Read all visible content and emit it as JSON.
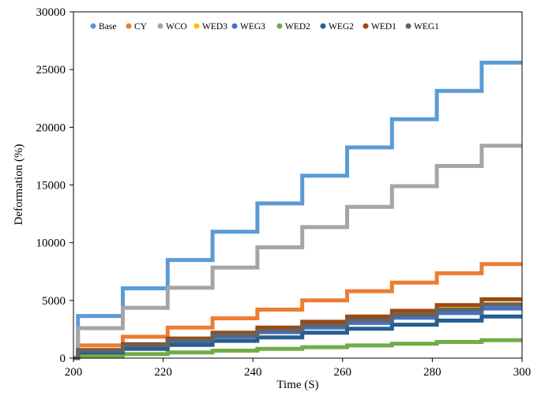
{
  "chart_data": {
    "type": "line",
    "title": "",
    "xlabel": "Time (S)",
    "ylabel": "Deformation (%)",
    "xlim": [
      200,
      300
    ],
    "ylim": [
      0,
      30000
    ],
    "x_ticks": [
      "200",
      "220",
      "240",
      "260",
      "280",
      "300"
    ],
    "y_ticks": [
      "0",
      "5000",
      "10000",
      "15000",
      "20000",
      "25000",
      "30000"
    ],
    "grid": false,
    "legend_position": "top",
    "step_start_times": [
      200,
      201,
      211,
      221,
      231,
      241,
      251,
      261,
      271,
      281,
      291
    ],
    "x_end": 300,
    "series": [
      {
        "name": "Base",
        "color": "#5B9BD5",
        "values": [
          0,
          3650,
          6050,
          8500,
          10950,
          13400,
          15800,
          18250,
          20700,
          23150,
          25600
        ]
      },
      {
        "name": "CY",
        "color": "#ED7D31",
        "values": [
          0,
          1100,
          1850,
          2650,
          3450,
          4200,
          5000,
          5800,
          6550,
          7350,
          8150
        ]
      },
      {
        "name": "WCO",
        "color": "#A5A5A5",
        "values": [
          0,
          2600,
          4350,
          6100,
          7850,
          9600,
          11350,
          13100,
          14900,
          16650,
          18400
        ]
      },
      {
        "name": "WED3",
        "color": "#FFC000",
        "values": [
          0,
          650,
          1150,
          1600,
          2050,
          2450,
          2900,
          3350,
          3800,
          4250,
          4700
        ]
      },
      {
        "name": "WEG3",
        "color": "#4472C4",
        "values": [
          0,
          600,
          1000,
          1450,
          1850,
          2250,
          2650,
          3050,
          3500,
          3900,
          4300
        ]
      },
      {
        "name": "WED2",
        "color": "#70AD47",
        "values": [
          0,
          200,
          350,
          500,
          650,
          800,
          950,
          1100,
          1250,
          1400,
          1550
        ]
      },
      {
        "name": "WEG2",
        "color": "#255E91",
        "values": [
          0,
          500,
          800,
          1150,
          1500,
          1800,
          2200,
          2550,
          2900,
          3250,
          3600
        ]
      },
      {
        "name": "WED1",
        "color": "#9E480E",
        "values": [
          0,
          700,
          1200,
          1700,
          2200,
          2650,
          3150,
          3600,
          4100,
          4600,
          5100
        ]
      },
      {
        "name": "WEG1",
        "color": "#636363",
        "values": [
          0,
          650,
          1100,
          1550,
          2000,
          2400,
          2850,
          3300,
          3750,
          4200,
          4650
        ]
      }
    ]
  }
}
